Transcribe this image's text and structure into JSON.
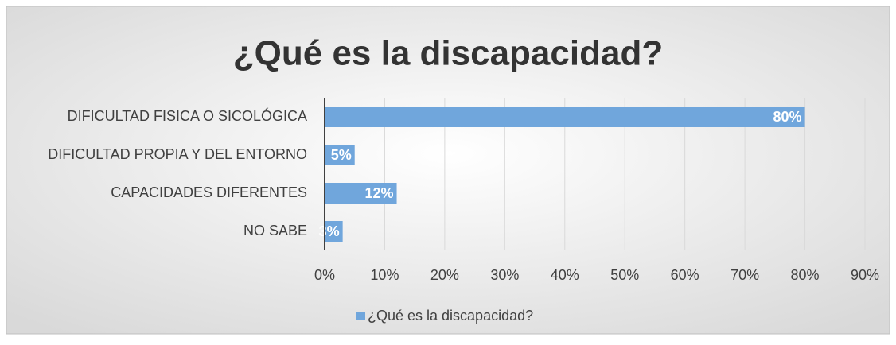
{
  "chart_data": {
    "type": "bar",
    "orientation": "horizontal",
    "title": "¿Qué es la discapacidad?",
    "categories": [
      "DIFICULTAD FISICA O SICOLÓGICA",
      "DIFICULTAD PROPIA Y DEL ENTORNO",
      "CAPACIDADES DIFERENTES",
      "NO SABE"
    ],
    "series": [
      {
        "name": "¿Qué es la discapacidad?",
        "color": "#70a6dc",
        "values": [
          80,
          5,
          12,
          3
        ],
        "value_labels": [
          "80%",
          "5%",
          "12%",
          "3%"
        ]
      }
    ],
    "xlim": [
      0,
      90
    ],
    "xticks": [
      {
        "value": 0,
        "label": "0%"
      },
      {
        "value": 10,
        "label": "10%"
      },
      {
        "value": 20,
        "label": "20%"
      },
      {
        "value": 30,
        "label": "30%"
      },
      {
        "value": 40,
        "label": "40%"
      },
      {
        "value": 50,
        "label": "50%"
      },
      {
        "value": 60,
        "label": "60%"
      },
      {
        "value": 70,
        "label": "70%"
      },
      {
        "value": 80,
        "label": "80%"
      },
      {
        "value": 90,
        "label": "90%"
      }
    ],
    "grid": true,
    "legend": "bottom"
  }
}
